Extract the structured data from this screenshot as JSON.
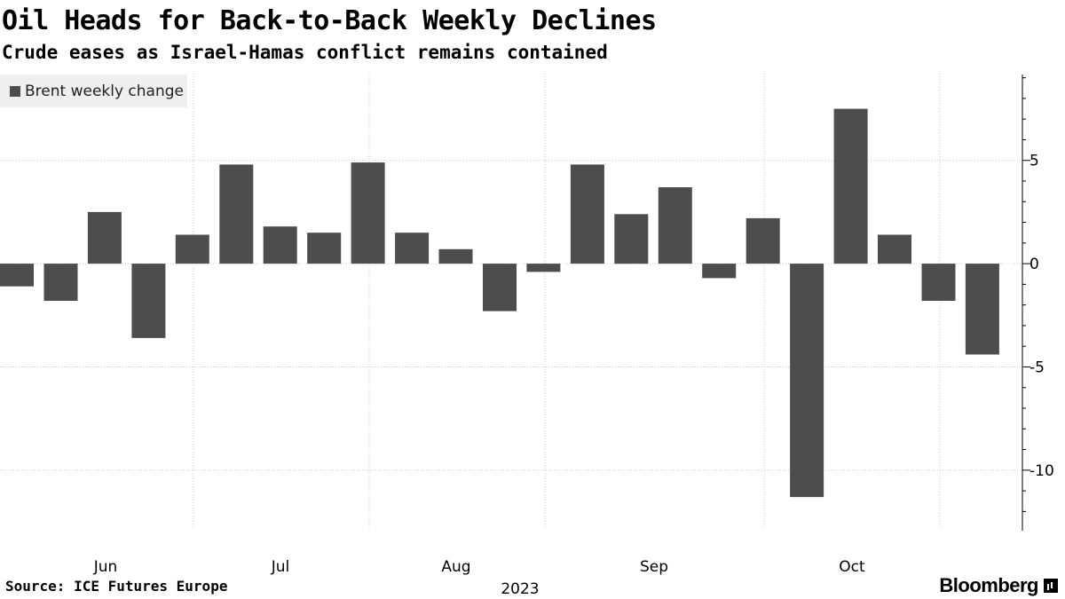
{
  "header": {
    "title": "Oil Heads for Back-to-Back Weekly Declines",
    "subtitle": "Crude eases as Israel-Hamas conflict remains contained"
  },
  "legend": {
    "label": "Brent weekly change",
    "color": "#4d4d4d"
  },
  "footer": {
    "source": "Source: ICE Futures Europe",
    "brand": "Bloomberg",
    "brand_icon": "bloomberg-terminal-icon"
  },
  "chart_data": {
    "type": "bar",
    "title": "Oil Heads for Back-to-Back Weekly Declines",
    "subtitle": "Crude eases as Israel-Hamas conflict remains contained",
    "series": [
      {
        "name": "Brent weekly change",
        "color": "#4d4d4d",
        "values": [
          -1.1,
          -1.8,
          2.5,
          -3.6,
          1.4,
          4.8,
          1.8,
          1.5,
          4.9,
          1.5,
          0.7,
          -2.3,
          -0.4,
          4.8,
          2.4,
          3.7,
          -0.7,
          2.2,
          -11.3,
          7.5,
          1.4,
          -1.8,
          -4.4
        ]
      }
    ],
    "x_month_labels": [
      "Jun",
      "Jul",
      "Aug",
      "Sep",
      "Oct"
    ],
    "x_year_label": "2023",
    "y_ticks": [
      5,
      0,
      -5,
      -10
    ],
    "y_tick_labels": [
      "5",
      "0",
      "-5",
      "-10"
    ],
    "ylim": [
      -12.8,
      9.2
    ],
    "xlabel": "",
    "ylabel": "",
    "grid": true,
    "legend_position": "top-left"
  }
}
